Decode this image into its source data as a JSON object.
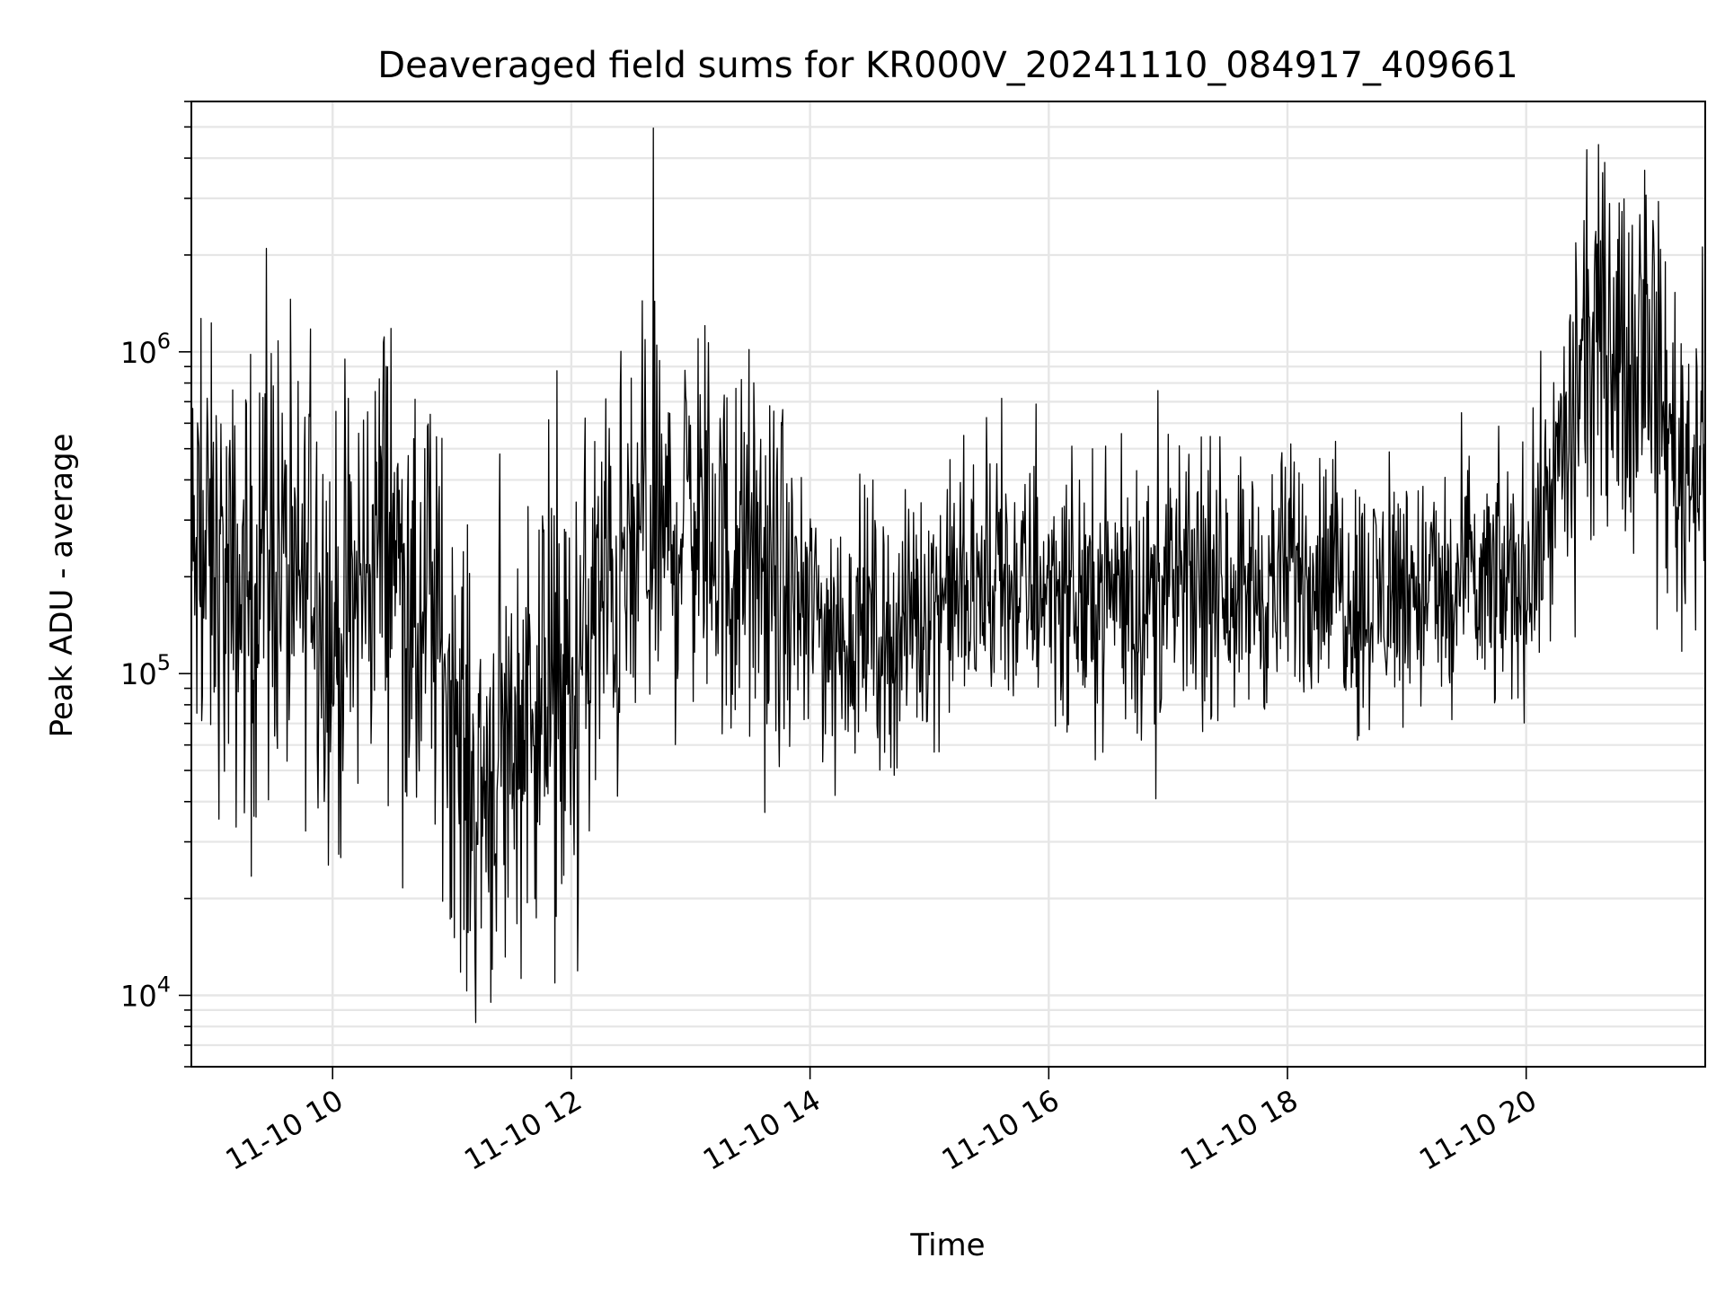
{
  "chart_data": {
    "type": "line",
    "title": "Deaveraged field sums for KR000V_20241110_084917_409661",
    "xlabel": "Time",
    "ylabel": "Peak ADU - average",
    "yscale": "log",
    "xlim": [
      "11-10 08:49",
      "11-10 21:30"
    ],
    "ylim": [
      6000,
      6000000
    ],
    "grid": true,
    "line_color": "#000000",
    "x_ticks": [
      {
        "value": "11-10 10:00",
        "label": "11-10 10"
      },
      {
        "value": "11-10 12:00",
        "label": "11-10 12"
      },
      {
        "value": "11-10 14:00",
        "label": "11-10 14"
      },
      {
        "value": "11-10 16:00",
        "label": "11-10 16"
      },
      {
        "value": "11-10 18:00",
        "label": "11-10 18"
      },
      {
        "value": "11-10 20:00",
        "label": "11-10 20"
      }
    ],
    "y_ticks": [
      {
        "value": 10000,
        "base": "10",
        "exp": "4"
      },
      {
        "value": 100000,
        "base": "10",
        "exp": "5"
      },
      {
        "value": 1000000,
        "base": "10",
        "exp": "6"
      }
    ],
    "series": [
      {
        "x": [
          "11-10 08:49",
          "11-10 09:00",
          "11-10 09:10",
          "11-10 09:20",
          "11-10 09:30",
          "11-10 09:40",
          "11-10 09:50",
          "11-10 10:00",
          "11-10 10:10",
          "11-10 10:20",
          "11-10 10:30",
          "11-10 10:40",
          "11-10 10:50",
          "11-10 11:00",
          "11-10 11:10",
          "11-10 11:20",
          "11-10 11:30",
          "11-10 11:40",
          "11-10 11:50",
          "11-10 12:00",
          "11-10 12:10",
          "11-10 12:20",
          "11-10 12:30",
          "11-10 12:40",
          "11-10 12:50",
          "11-10 13:00",
          "11-10 13:10",
          "11-10 13:20",
          "11-10 13:30",
          "11-10 13:40",
          "11-10 13:50",
          "11-10 14:00",
          "11-10 14:10",
          "11-10 14:20",
          "11-10 14:30",
          "11-10 14:40",
          "11-10 14:50",
          "11-10 15:00",
          "11-10 15:10",
          "11-10 15:20",
          "11-10 15:30",
          "11-10 15:40",
          "11-10 15:50",
          "11-10 16:00",
          "11-10 16:10",
          "11-10 16:20",
          "11-10 16:30",
          "11-10 16:40",
          "11-10 16:50",
          "11-10 17:00",
          "11-10 17:10",
          "11-10 17:20",
          "11-10 17:30",
          "11-10 17:40",
          "11-10 17:50",
          "11-10 18:00",
          "11-10 18:10",
          "11-10 18:20",
          "11-10 18:30",
          "11-10 18:40",
          "11-10 18:50",
          "11-10 19:00",
          "11-10 19:10",
          "11-10 19:20",
          "11-10 19:30",
          "11-10 19:40",
          "11-10 19:50",
          "11-10 20:00",
          "11-10 20:10",
          "11-10 20:20",
          "11-10 20:30",
          "11-10 20:40",
          "11-10 20:50",
          "11-10 21:00",
          "11-10 21:10",
          "11-10 21:20",
          "11-10 21:30"
        ],
        "y": [
          200000,
          220000,
          160000,
          200000,
          300000,
          150000,
          250000,
          120000,
          150000,
          250000,
          300000,
          110000,
          150000,
          90000,
          40000,
          50000,
          60000,
          90000,
          70000,
          80000,
          150000,
          180000,
          200000,
          300000,
          250000,
          350000,
          300000,
          200000,
          250000,
          180000,
          170000,
          160000,
          140000,
          130000,
          150000,
          120000,
          150000,
          170000,
          180000,
          170000,
          180000,
          190000,
          180000,
          200000,
          180000,
          170000,
          190000,
          180000,
          170000,
          190000,
          180000,
          190000,
          200000,
          190000,
          180000,
          200000,
          210000,
          200000,
          190000,
          170000,
          180000,
          190000,
          180000,
          170000,
          190000,
          180000,
          190000,
          200000,
          350000,
          500000,
          1000000,
          1200000,
          900000,
          1500000,
          600000,
          450000,
          550000
        ]
      }
    ]
  }
}
